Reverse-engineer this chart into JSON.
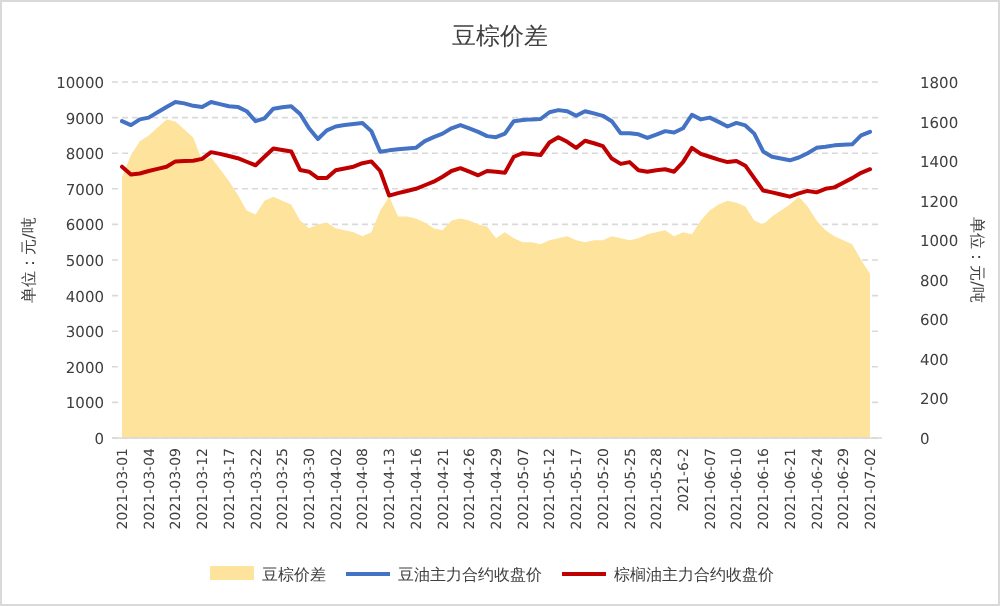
{
  "chart_data": {
    "type": "line",
    "title": "豆棕价差",
    "ylabel": "单位：元/吨",
    "y2label": "单位：元/吨",
    "categories": [
      "2021-03-01",
      null,
      null,
      "2021-03-04",
      null,
      null,
      "2021-03-09",
      null,
      null,
      "2021-03-12",
      null,
      null,
      "2021-03-17",
      null,
      null,
      "2021-03-22",
      null,
      null,
      "2021-03-25",
      null,
      null,
      "2021-03-30",
      null,
      null,
      "2021-04-02",
      null,
      null,
      "2021-04-08",
      null,
      null,
      "2021-04-13",
      null,
      null,
      "2021-04-16",
      null,
      null,
      "2021-04-21",
      null,
      null,
      "2021-04-26",
      null,
      null,
      "2021-04-29",
      null,
      null,
      "2021-05-07",
      null,
      null,
      "2021-05-12",
      null,
      null,
      "2021-05-17",
      null,
      null,
      "2021-05-20",
      null,
      null,
      "2021-05-25",
      null,
      null,
      "2021-05-28",
      null,
      null,
      "2021-6-2",
      null,
      null,
      "2021-06-07",
      null,
      null,
      "2021-06-10",
      null,
      null,
      "2021-06-16",
      null,
      null,
      "2021-06-21",
      null,
      null,
      "2021-06-24",
      null,
      null,
      "2021-06-29",
      null,
      null,
      "2021-07-02"
    ],
    "series": [
      {
        "name": "豆棕价差",
        "type": "area",
        "axis": "y2",
        "color": "#fde39b",
        "values": [
          1320,
          1430,
          1500,
          1530,
          1570,
          1610,
          1600,
          1560,
          1520,
          1400,
          1420,
          1360,
          1300,
          1230,
          1150,
          1130,
          1200,
          1220,
          1200,
          1180,
          1100,
          1060,
          1080,
          1090,
          1060,
          1050,
          1040,
          1020,
          1040,
          1150,
          1220,
          1120,
          1120,
          1110,
          1090,
          1060,
          1050,
          1100,
          1110,
          1100,
          1080,
          1070,
          1010,
          1040,
          1010,
          990,
          990,
          980,
          1000,
          1010,
          1020,
          1000,
          990,
          1000,
          1000,
          1020,
          1010,
          1000,
          1010,
          1030,
          1040,
          1050,
          1020,
          1040,
          1030,
          1100,
          1150,
          1180,
          1200,
          1190,
          1170,
          1100,
          1080,
          1120,
          1150,
          1180,
          1220,
          1170,
          1100,
          1050,
          1020,
          1000,
          980,
          900,
          830
        ]
      },
      {
        "name": "豆油主力合约收盘价",
        "color": "#4472c4",
        "values": [
          8900,
          8790,
          8950,
          9000,
          9150,
          9300,
          9440,
          9400,
          9330,
          9300,
          9440,
          9380,
          9320,
          9300,
          9180,
          8900,
          8980,
          9250,
          9290,
          9320,
          9100,
          8700,
          8400,
          8640,
          8750,
          8790,
          8820,
          8850,
          8620,
          8040,
          8080,
          8110,
          8130,
          8150,
          8340,
          8450,
          8550,
          8700,
          8790,
          8700,
          8600,
          8480,
          8450,
          8550,
          8900,
          8930,
          8950,
          8960,
          9150,
          9210,
          9180,
          9050,
          9180,
          9120,
          9050,
          8900,
          8560,
          8560,
          8530,
          8430,
          8520,
          8620,
          8580,
          8700,
          9080,
          8950,
          9000,
          8880,
          8750,
          8850,
          8780,
          8550,
          8050,
          7900,
          7850,
          7800,
          7880,
          8000,
          8150,
          8180,
          8220,
          8240,
          8250,
          8500,
          8600
        ]
      },
      {
        "name": "棕榈油主力合约收盘价",
        "color": "#c00000",
        "values": [
          7620,
          7400,
          7430,
          7500,
          7560,
          7620,
          7770,
          7780,
          7790,
          7840,
          8030,
          7980,
          7920,
          7860,
          7760,
          7660,
          7900,
          8130,
          8090,
          8050,
          7530,
          7480,
          7300,
          7300,
          7520,
          7570,
          7620,
          7720,
          7770,
          7500,
          6810,
          6880,
          6940,
          7000,
          7100,
          7200,
          7340,
          7500,
          7580,
          7480,
          7380,
          7500,
          7480,
          7450,
          7900,
          8000,
          7980,
          7950,
          8300,
          8450,
          8320,
          8150,
          8350,
          8280,
          8200,
          7850,
          7700,
          7750,
          7520,
          7480,
          7520,
          7550,
          7480,
          7750,
          8150,
          7980,
          7900,
          7820,
          7750,
          7780,
          7650,
          7300,
          6950,
          6900,
          6840,
          6780,
          6870,
          6940,
          6900,
          7000,
          7040,
          7170,
          7300,
          7450,
          7550
        ]
      }
    ],
    "ylim": [
      0,
      10000
    ],
    "yticks": [
      0,
      1000,
      2000,
      3000,
      4000,
      5000,
      6000,
      7000,
      8000,
      9000,
      10000
    ],
    "y2lim": [
      0,
      1800
    ],
    "y2ticks": [
      0,
      200,
      400,
      600,
      800,
      1000,
      1200,
      1400,
      1600,
      1800
    ],
    "grid": "y",
    "legend": "bottom",
    "marker": "none",
    "line_style": "solid"
  }
}
